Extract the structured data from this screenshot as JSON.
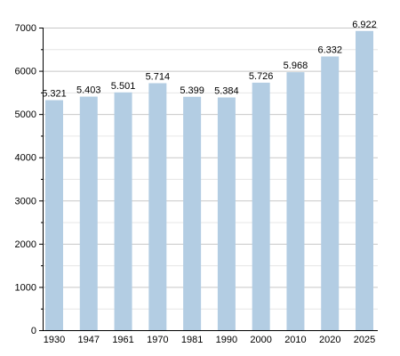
{
  "chart_data": {
    "type": "bar",
    "categories": [
      "1930",
      "1947",
      "1961",
      "1970",
      "1981",
      "1990",
      "2000",
      "2010",
      "2020",
      "2025"
    ],
    "values": [
      5321,
      5403,
      5501,
      5714,
      5399,
      5384,
      5726,
      5968,
      6332,
      6922
    ],
    "data_labels": [
      "5.321",
      "5.403",
      "5.501",
      "5.714",
      "5.399",
      "5.384",
      "5.726",
      "5.968",
      "6.332",
      "6.922"
    ],
    "y_ticks": [
      0,
      1000,
      2000,
      3000,
      4000,
      5000,
      6000,
      7000
    ],
    "ylim": [
      0,
      7000
    ],
    "grid": true,
    "title": "",
    "xlabel": "",
    "ylabel": "",
    "colors": {
      "bar": "#b3cde3",
      "major_grid": "#c8c8c8",
      "minor_grid": "#e6e6e6",
      "axis": "#000000"
    }
  }
}
